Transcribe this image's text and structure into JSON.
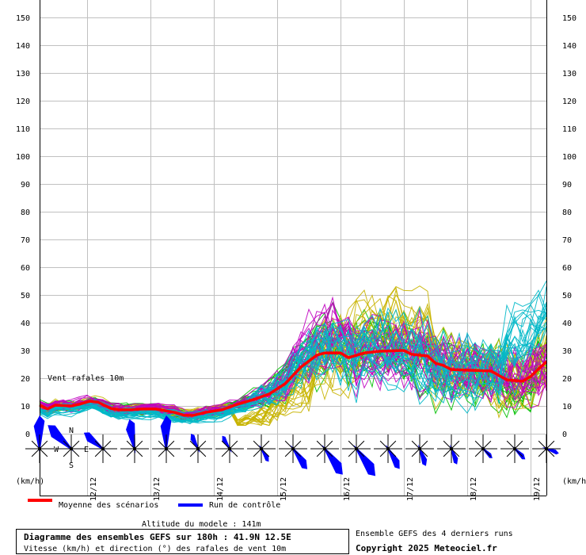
{
  "chart_data": {
    "type": "line",
    "title": "Diagramme des ensembles GEFS sur 180h : 41.9N 12.5E",
    "subtitle": "Vitesse (km/h) et direction (°) des rafales de vent 10m",
    "series_label": "Vent rafales 10m",
    "ylabel_left": "(km/h)",
    "ylabel_right": "(km/h)",
    "ylim": [
      0,
      150
    ],
    "y_ticks": [
      0,
      10,
      20,
      30,
      40,
      50,
      60,
      70,
      80,
      90,
      100,
      110,
      120,
      130,
      140,
      150
    ],
    "xlim_hours": [
      0,
      192
    ],
    "x_ticks": [
      {
        "hour": 18,
        "label": "12/12"
      },
      {
        "hour": 42,
        "label": "13/12"
      },
      {
        "hour": 66,
        "label": "14/12"
      },
      {
        "hour": 90,
        "label": "15/12"
      },
      {
        "hour": 114,
        "label": "16/12"
      },
      {
        "hour": 138,
        "label": "17/12"
      },
      {
        "hour": 162,
        "label": "18/12"
      },
      {
        "hour": 186,
        "label": "19/12"
      }
    ],
    "grid": true,
    "series": [
      {
        "name": "Moyenne des scénarios",
        "color": "#ff0000",
        "x": [
          0,
          3,
          6,
          12,
          15,
          19,
          22,
          27,
          30,
          34,
          39,
          44,
          51,
          55,
          58,
          63,
          69,
          75,
          82,
          87,
          93,
          99,
          105,
          108,
          114,
          117,
          123,
          129,
          138,
          141,
          147,
          150,
          153,
          156,
          162,
          171,
          177,
          183,
          186,
          192
        ],
        "values": [
          10.3,
          8.9,
          10.3,
          10,
          10.6,
          11.7,
          11.4,
          9.1,
          8.6,
          8.6,
          8.9,
          8.9,
          7.7,
          6.6,
          6.6,
          7.7,
          8.6,
          10.6,
          12.6,
          14.3,
          18,
          24,
          28.3,
          29.1,
          29.1,
          27.4,
          29.1,
          29.7,
          30,
          28.6,
          28,
          25.4,
          24.6,
          23.1,
          22.9,
          22.6,
          19.4,
          18.9,
          20.6,
          26
        ]
      },
      {
        "name": "Run de contrôle",
        "color": "#0000ff"
      }
    ],
    "ensemble_colors": [
      "#00c000",
      "#c8b400",
      "#c000c0",
      "#00b8c8"
    ],
    "wind_roses": [
      {
        "hour": 0,
        "dir": 0,
        "mag": 1.0
      },
      {
        "hour": 12,
        "dir": 315,
        "mag": 1.0
      },
      {
        "hour": 24,
        "dir": 310,
        "mag": 0.75
      },
      {
        "hour": 36,
        "dir": 350,
        "mag": 0.9
      },
      {
        "hour": 48,
        "dir": 0,
        "mag": 1.0
      },
      {
        "hour": 60,
        "dir": 335,
        "mag": 0.5
      },
      {
        "hour": 72,
        "dir": 330,
        "mag": 0.45
      },
      {
        "hour": 84,
        "dir": 150,
        "mag": 0.45
      },
      {
        "hour": 96,
        "dir": 145,
        "mag": 0.75
      },
      {
        "hour": 108,
        "dir": 145,
        "mag": 0.95
      },
      {
        "hour": 120,
        "dir": 145,
        "mag": 1.0
      },
      {
        "hour": 132,
        "dir": 150,
        "mag": 0.7
      },
      {
        "hour": 144,
        "dir": 160,
        "mag": 0.55
      },
      {
        "hour": 156,
        "dir": 160,
        "mag": 0.5
      },
      {
        "hour": 168,
        "dir": 135,
        "mag": 0.4
      },
      {
        "hour": 180,
        "dir": 135,
        "mag": 0.45
      },
      {
        "hour": 192,
        "dir": 110,
        "mag": 0.4
      }
    ],
    "compass": {
      "n": "N",
      "s": "S",
      "e": "E",
      "w": "W"
    }
  },
  "legend": {
    "mean_label": "Moyenne des scénarios",
    "control_label": "Run de contrôle"
  },
  "footer": {
    "altitude": "Altitude du modele : 141m",
    "title": "Diagramme des ensembles GEFS sur 180h : 41.9N 12.5E",
    "subtitle": "Vitesse (km/h) et direction (°) des rafales de vent 10m",
    "runs": "Ensemble GEFS des 4 derniers runs",
    "copyright": "Copyright 2025 Meteociel.fr"
  }
}
